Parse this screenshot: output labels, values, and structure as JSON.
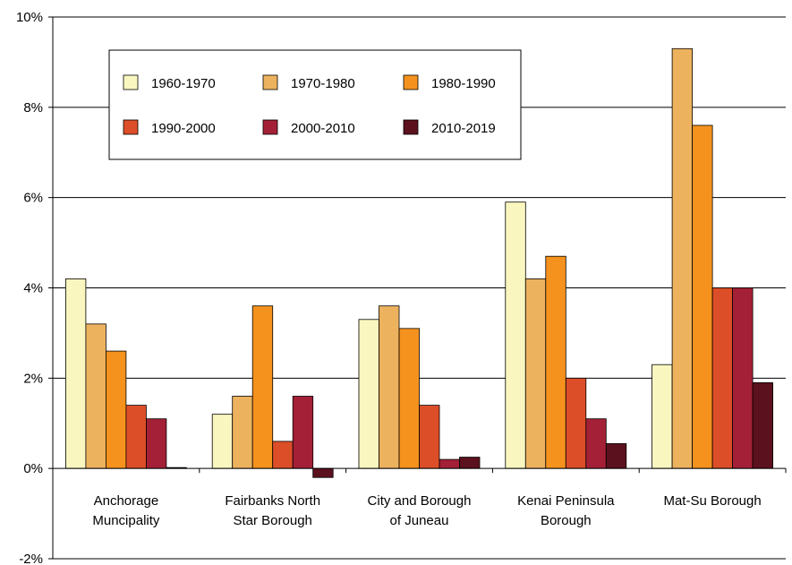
{
  "chart_data": {
    "type": "bar",
    "title": "",
    "xlabel": "",
    "ylabel": "",
    "ylim": [
      -2,
      10
    ],
    "y_ticks": [
      "-2%",
      "0%",
      "2%",
      "4%",
      "6%",
      "8%",
      "10%"
    ],
    "y_tick_values": [
      -2,
      0,
      2,
      4,
      6,
      8,
      10
    ],
    "grid": true,
    "legend_position": "top-left",
    "categories": [
      [
        "Anchorage",
        "Muncipality"
      ],
      [
        "Fairbanks North",
        "Star Borough"
      ],
      [
        "City and Borough",
        "of Juneau"
      ],
      [
        "Kenai Peninsula",
        "Borough"
      ],
      [
        "Mat-Su Borough"
      ]
    ],
    "series": [
      {
        "name": "1960-1970",
        "color": "#FAF6C0",
        "values": [
          4.2,
          1.2,
          3.3,
          5.9,
          2.3
        ]
      },
      {
        "name": "1970-1980",
        "color": "#EDB25E",
        "values": [
          3.2,
          1.6,
          3.6,
          4.2,
          9.3
        ]
      },
      {
        "name": "1980-1990",
        "color": "#F5921E",
        "values": [
          2.6,
          3.6,
          3.1,
          4.7,
          7.6
        ]
      },
      {
        "name": "1990-2000",
        "color": "#DC4E28",
        "values": [
          1.4,
          0.6,
          1.4,
          2.0,
          4.0
        ]
      },
      {
        "name": "2000-2010",
        "color": "#A32036",
        "values": [
          1.1,
          1.6,
          0.2,
          1.1,
          4.0
        ]
      },
      {
        "name": "2010-2019",
        "color": "#5C111E",
        "values": [
          0.02,
          -0.2,
          0.25,
          0.55,
          1.9
        ]
      }
    ]
  }
}
